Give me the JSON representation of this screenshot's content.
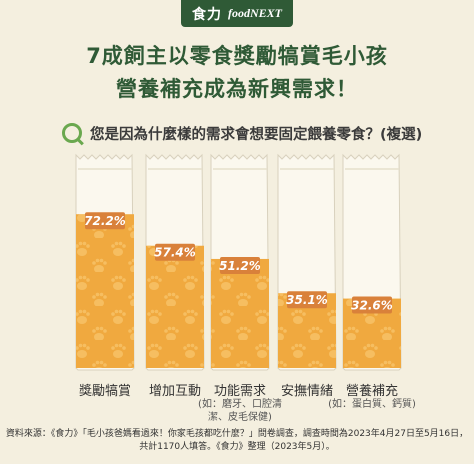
{
  "brand": {
    "zh": "食力",
    "en": "foodNEXT"
  },
  "headline": {
    "line1": "7成飼主以零食獎勵犒賞毛小孩",
    "line2": "營養補充成為新興需求！"
  },
  "question": "您是因為什麼樣的需求會想要固定餵養零食？(複選)",
  "chart_data": {
    "type": "bar",
    "categories": [
      "獎勵犒賞",
      "增加互動",
      "功能需求",
      "安撫情緒",
      "營養補充"
    ],
    "subcategories": [
      "",
      "",
      "(如：磨牙、口腔清潔、皮毛保健)",
      "",
      "(如：蛋白質、鈣質)"
    ],
    "values": [
      72.2,
      57.4,
      51.2,
      35.1,
      32.6
    ],
    "data_labels": [
      "72.2%",
      "57.4%",
      "51.2%",
      "35.1%",
      "32.6%"
    ],
    "ylim": [
      0,
      100
    ]
  },
  "source": {
    "line1": "資料來源：《食力》「毛小孩爸媽看過來！你家毛孩都吃什麼？」問卷調查，調查時間為2023年4月27日至5月16日，",
    "line2": "共計1170人填答。《食力》整理（2023年5月）。"
  },
  "colors": {
    "brand_green": "#2f5a36",
    "background": "#f4efdf",
    "bar_fill": "#f0a93f",
    "bar_fill_light": "#f7c267",
    "label_tag": "#d9813a",
    "pouch": "#fbf8ee",
    "question_icon": "#6aa84f"
  }
}
